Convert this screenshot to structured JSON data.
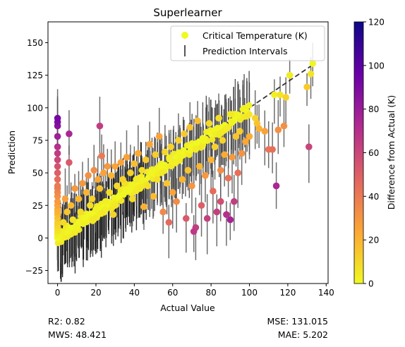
{
  "chart_data": {
    "type": "scatter",
    "title": "Superlearner",
    "xlabel": "Actual Value",
    "ylabel": "Prediction",
    "xlim": [
      -5,
      141
    ],
    "ylim": [
      -35,
      166
    ],
    "xticks": [
      0,
      20,
      40,
      60,
      80,
      100,
      120,
      140
    ],
    "yticks": [
      -25,
      0,
      25,
      50,
      75,
      100,
      125,
      150
    ],
    "grid": false,
    "legend": {
      "placement": "top-right",
      "entries": [
        "Critical Temperature (K)",
        "Prediction Intervals"
      ]
    },
    "reference_line": {
      "style": "dashed",
      "from": [
        0,
        0
      ],
      "to": [
        134,
        134
      ],
      "color": "#333333"
    },
    "colorbar": {
      "label": "Difference from Actual (K)",
      "range": [
        0,
        120
      ],
      "ticks": [
        0,
        20,
        40,
        60,
        80,
        100,
        120
      ],
      "colormap": "plasma_r",
      "stops": [
        "#f0f921",
        "#fca636",
        "#e16462",
        "#b12a90",
        "#6a00a8",
        "#0d0887"
      ]
    },
    "series": [
      {
        "name": "Critical Temperature (K)",
        "kind": "points",
        "points": [
          [
            0,
            0
          ],
          [
            0,
            2
          ],
          [
            0,
            4
          ],
          [
            0,
            6
          ],
          [
            0,
            8
          ],
          [
            0,
            10
          ],
          [
            0,
            12
          ],
          [
            0,
            15
          ],
          [
            0,
            18
          ],
          [
            0,
            20
          ],
          [
            0,
            22
          ],
          [
            0,
            25
          ],
          [
            0,
            28
          ],
          [
            0,
            32
          ],
          [
            0,
            35
          ],
          [
            0,
            38
          ],
          [
            0,
            40
          ],
          [
            0,
            45
          ],
          [
            0,
            50
          ],
          [
            0,
            55
          ],
          [
            0,
            60
          ],
          [
            0,
            65
          ],
          [
            0,
            70
          ],
          [
            0,
            78
          ],
          [
            0,
            86
          ],
          [
            0,
            89
          ],
          [
            0,
            92
          ],
          [
            2,
            5
          ],
          [
            3,
            12
          ],
          [
            4,
            30
          ],
          [
            5,
            20
          ],
          [
            6,
            58
          ],
          [
            6,
            80
          ],
          [
            7,
            25
          ],
          [
            8,
            14
          ],
          [
            9,
            38
          ],
          [
            10,
            8
          ],
          [
            11,
            30
          ],
          [
            12,
            20
          ],
          [
            13,
            42
          ],
          [
            14,
            15
          ],
          [
            15,
            35
          ],
          [
            16,
            48
          ],
          [
            17,
            25
          ],
          [
            18,
            30
          ],
          [
            19,
            52
          ],
          [
            20,
            22
          ],
          [
            21,
            45
          ],
          [
            22,
            38
          ],
          [
            22,
            86
          ],
          [
            23,
            63
          ],
          [
            24,
            50
          ],
          [
            25,
            28
          ],
          [
            26,
            55
          ],
          [
            27,
            35
          ],
          [
            28,
            48
          ],
          [
            29,
            18
          ],
          [
            30,
            55
          ],
          [
            31,
            40
          ],
          [
            32,
            32
          ],
          [
            33,
            58
          ],
          [
            34,
            45
          ],
          [
            35,
            42
          ],
          [
            36,
            62
          ],
          [
            37,
            36
          ],
          [
            38,
            50
          ],
          [
            39,
            30
          ],
          [
            40,
            57
          ],
          [
            41,
            45
          ],
          [
            42,
            65
          ],
          [
            43,
            38
          ],
          [
            44,
            52
          ],
          [
            45,
            24
          ],
          [
            46,
            60
          ],
          [
            47,
            40
          ],
          [
            48,
            72
          ],
          [
            49,
            50
          ],
          [
            50,
            32
          ],
          [
            51,
            64
          ],
          [
            52,
            45
          ],
          [
            53,
            78
          ],
          [
            54,
            55
          ],
          [
            55,
            20
          ],
          [
            56,
            66
          ],
          [
            57,
            42
          ],
          [
            58,
            12
          ],
          [
            59,
            70
          ],
          [
            60,
            35
          ],
          [
            61,
            58
          ],
          [
            62,
            28
          ],
          [
            63,
            75
          ],
          [
            64,
            62
          ],
          [
            65,
            45
          ],
          [
            66,
            80
          ],
          [
            67,
            15
          ],
          [
            68,
            52
          ],
          [
            69,
            85
          ],
          [
            70,
            40
          ],
          [
            71,
            5
          ],
          [
            72,
            8
          ],
          [
            72,
            68
          ],
          [
            73,
            90
          ],
          [
            74,
            55
          ],
          [
            75,
            25
          ],
          [
            76,
            75
          ],
          [
            77,
            48
          ],
          [
            78,
            15
          ],
          [
            79,
            88
          ],
          [
            80,
            60
          ],
          [
            81,
            36
          ],
          [
            82,
            70
          ],
          [
            83,
            20
          ],
          [
            84,
            92
          ],
          [
            85,
            52
          ],
          [
            85,
            28
          ],
          [
            86,
            75
          ],
          [
            87,
            64
          ],
          [
            88,
            18
          ],
          [
            88,
            84
          ],
          [
            89,
            46
          ],
          [
            90,
            14
          ],
          [
            90,
            95
          ],
          [
            91,
            62
          ],
          [
            92,
            28
          ],
          [
            93,
            78
          ],
          [
            94,
            50
          ],
          [
            95,
            82
          ],
          [
            96,
            65
          ],
          [
            98,
            74
          ],
          [
            100,
            78
          ],
          [
            103,
            92
          ],
          [
            104,
            88
          ],
          [
            105,
            84
          ],
          [
            108,
            82
          ],
          [
            110,
            68
          ],
          [
            112,
            68
          ],
          [
            113,
            110
          ],
          [
            114,
            40
          ],
          [
            115,
            83
          ],
          [
            116,
            110
          ],
          [
            118,
            86
          ],
          [
            119,
            108
          ],
          [
            121,
            125
          ],
          [
            130,
            116
          ],
          [
            131,
            70
          ],
          [
            132,
            126
          ],
          [
            133,
            134
          ]
        ]
      },
      {
        "name": "Prediction Intervals",
        "kind": "vertical error bars",
        "summary": "Each point carries a vertical interval; bars span about -24 K to +105 K, densest for actual values below 50 K."
      }
    ]
  },
  "stats": {
    "r2": "R2: 0.82",
    "mws": "MWS: 48.421",
    "mse": "MSE: 131.015",
    "mae": "MAE: 5.202"
  }
}
